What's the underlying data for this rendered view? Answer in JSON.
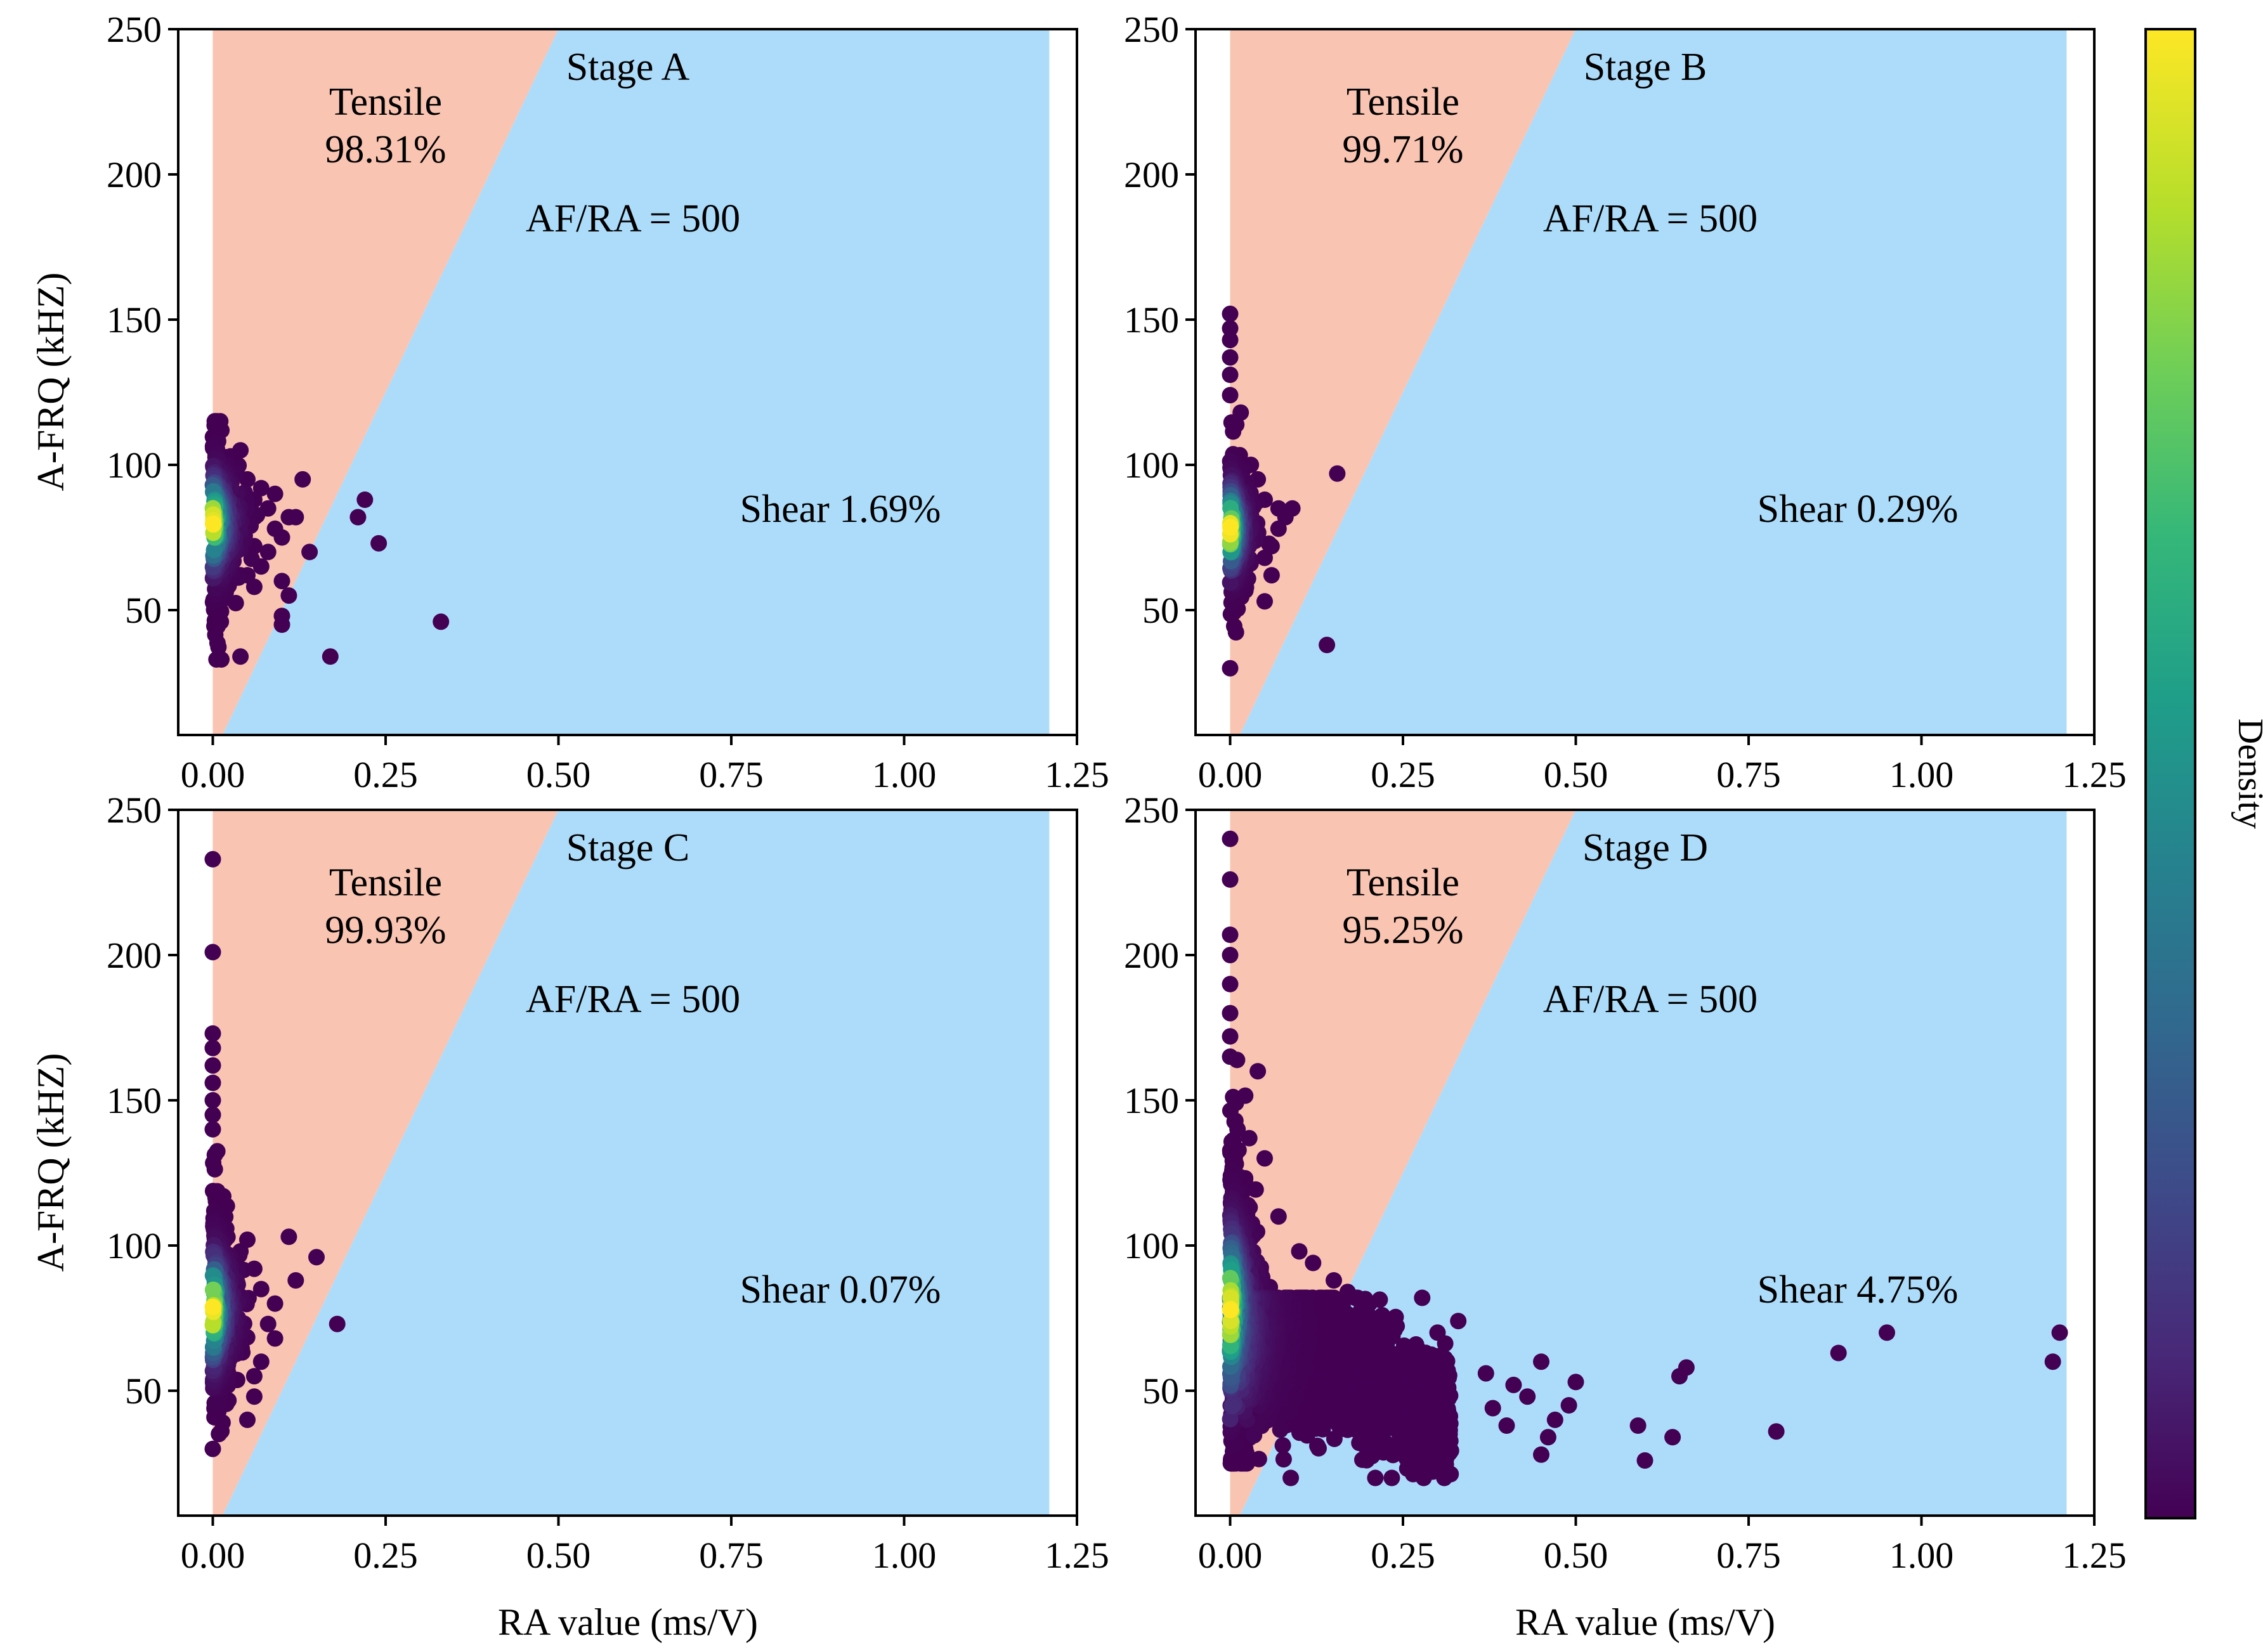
{
  "colors": {
    "tensile_region": "#fac4b2",
    "shear_region": "#addcfa",
    "colormap": "viridis"
  },
  "chart_data": [
    {
      "type": "scatter",
      "stage_label": "Stage A",
      "tensile_label": "Tensile",
      "tensile_pct": "98.31%",
      "shear_label": "Shear 1.69%",
      "line_label": "AF/RA = 500",
      "xlabel": "",
      "ylabel": "A-FRQ (kHZ)",
      "xlim": [
        -0.05,
        1.25
      ],
      "ylim": [
        7,
        250
      ],
      "xticks": [
        "0.00",
        "0.25",
        "0.50",
        "0.75",
        "1.00",
        "1.25"
      ],
      "yticks": [
        "50",
        "100",
        "150",
        "200",
        "250"
      ],
      "divider_slope": 500,
      "shaded_xmax": 1.21,
      "outliers": [
        [
          0.13,
          95
        ],
        [
          0.12,
          82
        ],
        [
          0.11,
          82
        ],
        [
          0.14,
          70
        ],
        [
          0.1,
          75
        ],
        [
          0.09,
          78
        ],
        [
          0.1,
          60
        ],
        [
          0.11,
          55
        ],
        [
          0.1,
          48
        ],
        [
          0.1,
          45
        ],
        [
          0.21,
          82
        ],
        [
          0.22,
          88
        ],
        [
          0.24,
          73
        ],
        [
          0.17,
          34
        ],
        [
          0.33,
          46
        ],
        [
          0.04,
          34
        ],
        [
          0.07,
          92
        ],
        [
          0.06,
          88
        ],
        [
          0.08,
          85
        ],
        [
          0.05,
          95
        ],
        [
          0.07,
          65
        ],
        [
          0.08,
          70
        ],
        [
          0.06,
          72
        ],
        [
          0.09,
          90
        ],
        [
          0.05,
          62
        ],
        [
          0.06,
          58
        ],
        [
          0.04,
          105
        ],
        [
          0.03,
          98
        ],
        [
          0.04,
          62
        ]
      ],
      "cluster": {
        "x_spread": 0.03,
        "y_center": 80,
        "y_sd": 15,
        "y_min": 33,
        "y_max": 115,
        "count": 360,
        "tail_count": 0,
        "tail_x_max": 0.0,
        "tail_y_min": 0,
        "tail_y_max": 0
      }
    },
    {
      "type": "scatter",
      "stage_label": "Stage B",
      "tensile_label": "Tensile",
      "tensile_pct": "99.71%",
      "shear_label": "Shear 0.29%",
      "line_label": "AF/RA = 500",
      "xlabel": "",
      "ylabel": "",
      "xlim": [
        -0.05,
        1.25
      ],
      "ylim": [
        7,
        250
      ],
      "xticks": [
        "0.00",
        "0.25",
        "0.50",
        "0.75",
        "1.00",
        "1.25"
      ],
      "yticks": [
        "50",
        "100",
        "150",
        "200",
        "250"
      ],
      "divider_slope": 500,
      "shaded_xmax": 1.21,
      "outliers": [
        [
          0.155,
          97
        ],
        [
          0.14,
          38
        ],
        [
          0.05,
          53
        ],
        [
          0.09,
          85
        ],
        [
          0.08,
          82
        ],
        [
          0.07,
          78
        ],
        [
          0.06,
          72
        ],
        [
          0.07,
          85
        ],
        [
          0.05,
          88
        ],
        [
          0.04,
          95
        ],
        [
          0.06,
          62
        ],
        [
          0.05,
          68
        ],
        [
          0.03,
          100
        ],
        [
          0.04,
          75
        ],
        [
          0.0,
          30
        ],
        [
          0.0,
          152
        ],
        [
          0.0,
          147
        ],
        [
          0.0,
          143
        ],
        [
          0.0,
          137
        ],
        [
          0.0,
          131
        ],
        [
          0.0,
          124
        ]
      ],
      "cluster": {
        "x_spread": 0.022,
        "y_center": 78,
        "y_sd": 14,
        "y_min": 40,
        "y_max": 118,
        "count": 360,
        "tail_count": 0,
        "tail_x_max": 0.0,
        "tail_y_min": 0,
        "tail_y_max": 0
      }
    },
    {
      "type": "scatter",
      "stage_label": "Stage C",
      "tensile_label": "Tensile",
      "tensile_pct": "99.93%",
      "shear_label": "Shear 0.07%",
      "line_label": "AF/RA = 500",
      "xlabel": "RA value (ms/V)",
      "ylabel": "A-FRQ (kHZ)",
      "xlim": [
        -0.05,
        1.25
      ],
      "ylim": [
        7,
        250
      ],
      "xticks": [
        "0.00",
        "0.25",
        "0.50",
        "0.75",
        "1.00",
        "1.25"
      ],
      "yticks": [
        "50",
        "100",
        "150",
        "200",
        "250"
      ],
      "divider_slope": 500,
      "shaded_xmax": 1.21,
      "outliers": [
        [
          0.18,
          73
        ],
        [
          0.15,
          96
        ],
        [
          0.11,
          103
        ],
        [
          0.12,
          88
        ],
        [
          0.09,
          80
        ],
        [
          0.08,
          73
        ],
        [
          0.09,
          68
        ],
        [
          0.07,
          60
        ],
        [
          0.06,
          55
        ],
        [
          0.06,
          48
        ],
        [
          0.05,
          40
        ],
        [
          0.07,
          85
        ],
        [
          0.06,
          92
        ],
        [
          0.05,
          102
        ],
        [
          0.04,
          98
        ],
        [
          0.0,
          233
        ],
        [
          0.0,
          201
        ],
        [
          0.0,
          173
        ],
        [
          0.0,
          168
        ],
        [
          0.0,
          162
        ],
        [
          0.0,
          156
        ],
        [
          0.0,
          150
        ],
        [
          0.0,
          145
        ],
        [
          0.0,
          140
        ],
        [
          0.0,
          30
        ]
      ],
      "cluster": {
        "x_spread": 0.026,
        "y_center": 78,
        "y_sd": 18,
        "y_min": 32,
        "y_max": 140,
        "count": 420,
        "tail_count": 0,
        "tail_x_max": 0.0,
        "tail_y_min": 0,
        "tail_y_max": 0
      }
    },
    {
      "type": "scatter",
      "stage_label": "Stage D",
      "tensile_label": "Tensile",
      "tensile_pct": "95.25%",
      "shear_label": "Shear 4.75%",
      "line_label": "AF/RA = 500",
      "xlabel": "RA value (ms/V)",
      "ylabel": "",
      "xlim": [
        -0.05,
        1.25
      ],
      "ylim": [
        7,
        250
      ],
      "xticks": [
        "0.00",
        "0.25",
        "0.50",
        "0.75",
        "1.00",
        "1.25"
      ],
      "yticks": [
        "50",
        "100",
        "150",
        "200",
        "250"
      ],
      "divider_slope": 500,
      "shaded_xmax": 1.21,
      "outliers": [
        [
          1.2,
          70
        ],
        [
          1.19,
          60
        ],
        [
          0.95,
          70
        ],
        [
          0.88,
          63
        ],
        [
          0.79,
          36
        ],
        [
          0.66,
          58
        ],
        [
          0.65,
          55
        ],
        [
          0.64,
          34
        ],
        [
          0.6,
          26
        ],
        [
          0.59,
          38
        ],
        [
          0.5,
          53
        ],
        [
          0.49,
          45
        ],
        [
          0.47,
          40
        ],
        [
          0.46,
          34
        ],
        [
          0.45,
          60
        ],
        [
          0.45,
          28
        ],
        [
          0.43,
          48
        ],
        [
          0.41,
          52
        ],
        [
          0.4,
          38
        ],
        [
          0.38,
          44
        ],
        [
          0.37,
          56
        ],
        [
          0.33,
          74
        ],
        [
          0.3,
          70
        ],
        [
          0.28,
          20
        ],
        [
          0.27,
          65
        ],
        [
          0.25,
          62
        ],
        [
          0.22,
          76
        ],
        [
          0.19,
          80
        ],
        [
          0.17,
          84
        ],
        [
          0.15,
          88
        ],
        [
          0.12,
          94
        ],
        [
          0.1,
          98
        ],
        [
          0.07,
          110
        ],
        [
          0.05,
          130
        ],
        [
          0.04,
          160
        ],
        [
          0.0,
          240
        ],
        [
          0.0,
          226
        ],
        [
          0.0,
          207
        ],
        [
          0.0,
          200
        ],
        [
          0.0,
          190
        ],
        [
          0.0,
          180
        ],
        [
          0.0,
          172
        ],
        [
          0.0,
          165
        ]
      ],
      "cluster": {
        "x_spread": 0.03,
        "y_center": 78,
        "y_sd": 26,
        "y_min": 25,
        "y_max": 180,
        "count": 650,
        "tail_count": 1500,
        "tail_x_max": 0.32,
        "tail_y_min": 20,
        "tail_y_max": 82
      }
    }
  ],
  "colorbar": {
    "label": "Density",
    "colormap": "viridis",
    "colors": [
      "#440154",
      "#482878",
      "#3e4a89",
      "#31688e",
      "#26828e",
      "#1f9e89",
      "#35b779",
      "#6ece58",
      "#b5de2b",
      "#fde725"
    ]
  }
}
